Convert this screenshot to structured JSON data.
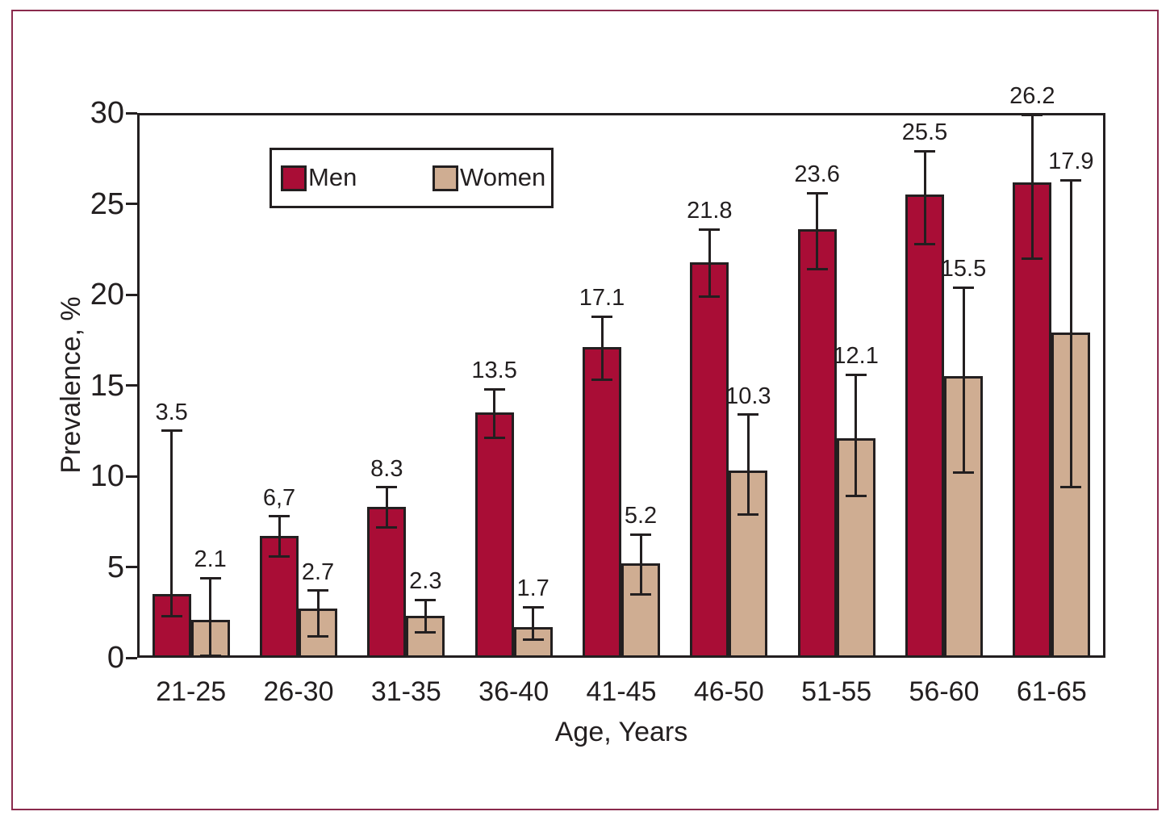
{
  "figure": {
    "frame_color": "#8A2A4D",
    "background": "#ffffff",
    "line_color": "#231F20"
  },
  "chart_data": {
    "type": "bar",
    "title": "",
    "xlabel": "Age, Years",
    "ylabel": "Prevalence, %",
    "ylim": [
      0,
      30
    ],
    "yticks": [
      0,
      5,
      10,
      15,
      20,
      25,
      30
    ],
    "grid": false,
    "legend_position": "top-left-inside",
    "categories": [
      "21-25",
      "26-30",
      "31-35",
      "36-40",
      "41-45",
      "46-50",
      "51-55",
      "56-60",
      "61-65"
    ],
    "series": [
      {
        "name": "Men",
        "color": "#A90D36",
        "values": [
          3.5,
          6.7,
          8.3,
          13.5,
          17.1,
          21.8,
          23.6,
          25.5,
          26.2
        ],
        "labels": [
          "3.5",
          "6,7",
          "8.3",
          "13.5",
          "17.1",
          "21.8",
          "23.6",
          "25.5",
          "26.2"
        ],
        "error_low": [
          2.3,
          5.6,
          7.2,
          12.1,
          15.3,
          19.9,
          21.4,
          22.8,
          22.0
        ],
        "error_high": [
          12.5,
          7.8,
          9.4,
          14.8,
          18.8,
          23.6,
          25.6,
          27.9,
          29.9
        ]
      },
      {
        "name": "Women",
        "color": "#CFAD92",
        "values": [
          2.1,
          2.7,
          2.3,
          1.7,
          5.2,
          10.3,
          12.1,
          15.5,
          17.9
        ],
        "labels": [
          "2.1",
          "2.7",
          "2.3",
          "1.7",
          "5.2",
          "10.3",
          "12.1",
          "15.5",
          "17.9"
        ],
        "error_low": [
          0.1,
          1.2,
          1.4,
          1.0,
          3.5,
          7.9,
          8.9,
          10.2,
          9.4
        ],
        "error_high": [
          4.4,
          3.7,
          3.2,
          2.8,
          6.8,
          13.4,
          15.6,
          20.4,
          26.3
        ]
      }
    ]
  }
}
